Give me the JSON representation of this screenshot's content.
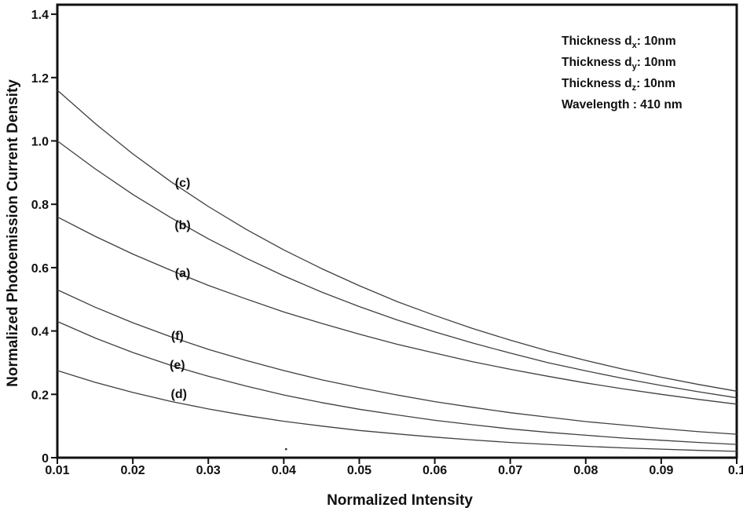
{
  "annotation": {
    "lines": [
      {
        "pre": "Thickness d",
        "sub": "x",
        "post": ": 10nm"
      },
      {
        "pre": "Thickness d",
        "sub": "y",
        "post": ": 10nm"
      },
      {
        "pre": "Thickness d",
        "sub": "z",
        "post": ": 10nm"
      },
      {
        "pre": "Wavelength : 410",
        "sub": "",
        "post": " nm"
      }
    ]
  },
  "chart_data": {
    "type": "line",
    "title": "",
    "xlabel": "Normalized Intensity",
    "ylabel": "Normalized Photoemission Current Density",
    "xlim": [
      0.01,
      0.1
    ],
    "ylim": [
      0,
      1.43
    ],
    "grid": false,
    "legend_position": "none",
    "frame_color": "#111111",
    "line_color": "#3f3f3f",
    "x": [
      0.01,
      0.015,
      0.02,
      0.025,
      0.03,
      0.035,
      0.04,
      0.045,
      0.05,
      0.055,
      0.06,
      0.065,
      0.07,
      0.075,
      0.08,
      0.085,
      0.09,
      0.095,
      0.1
    ],
    "x_ticks": [
      {
        "v": 0.01,
        "label": "0.01"
      },
      {
        "v": 0.02,
        "label": "0.02"
      },
      {
        "v": 0.03,
        "label": "0.03"
      },
      {
        "v": 0.04,
        "label": "0.04"
      },
      {
        "v": 0.05,
        "label": "0.05"
      },
      {
        "v": 0.06,
        "label": "0.06"
      },
      {
        "v": 0.07,
        "label": "0.07"
      },
      {
        "v": 0.08,
        "label": "0.08"
      },
      {
        "v": 0.09,
        "label": "0.09"
      },
      {
        "v": 0.1,
        "label": "0.1"
      }
    ],
    "y_ticks": [
      {
        "v": 0,
        "label": "0"
      },
      {
        "v": 0.2,
        "label": "0.2"
      },
      {
        "v": 0.4,
        "label": "0.4"
      },
      {
        "v": 0.6,
        "label": "0.6"
      },
      {
        "v": 0.8,
        "label": "0.8"
      },
      {
        "v": 1.0,
        "label": "1.0"
      },
      {
        "v": 1.2,
        "label": "1.2"
      },
      {
        "v": 1.4,
        "label": "1.4"
      }
    ],
    "series": [
      {
        "id": "a",
        "label": "(a)",
        "label_x": 0.0266,
        "label_y": 0.585,
        "values": [
          0.76,
          0.699,
          0.643,
          0.592,
          0.544,
          0.501,
          0.46,
          0.424,
          0.39,
          0.358,
          0.33,
          0.303,
          0.279,
          0.257,
          0.236,
          0.217,
          0.2,
          0.184,
          0.169
        ]
      },
      {
        "id": "b",
        "label": "(b)",
        "label_x": 0.0266,
        "label_y": 0.736,
        "values": [
          1.0,
          0.912,
          0.831,
          0.758,
          0.691,
          0.63,
          0.574,
          0.523,
          0.477,
          0.435,
          0.397,
          0.362,
          0.33,
          0.3,
          0.274,
          0.25,
          0.228,
          0.208,
          0.189
        ]
      },
      {
        "id": "c",
        "label": "(c)",
        "label_x": 0.0266,
        "label_y": 0.87,
        "values": [
          1.16,
          1.055,
          0.959,
          0.872,
          0.793,
          0.721,
          0.656,
          0.597,
          0.543,
          0.493,
          0.449,
          0.408,
          0.371,
          0.337,
          0.307,
          0.279,
          0.254,
          0.231,
          0.21
        ]
      },
      {
        "id": "d",
        "label": "(d)",
        "label_x": 0.0261,
        "label_y": 0.203,
        "values": [
          0.275,
          0.238,
          0.206,
          0.178,
          0.154,
          0.133,
          0.115,
          0.1,
          0.086,
          0.075,
          0.065,
          0.056,
          0.048,
          0.042,
          0.036,
          0.031,
          0.027,
          0.023,
          0.02
        ]
      },
      {
        "id": "e",
        "label": "(e)",
        "label_x": 0.0259,
        "label_y": 0.295,
        "values": [
          0.43,
          0.378,
          0.332,
          0.292,
          0.257,
          0.226,
          0.198,
          0.174,
          0.153,
          0.135,
          0.118,
          0.104,
          0.091,
          0.08,
          0.071,
          0.062,
          0.055,
          0.048,
          0.042
        ]
      },
      {
        "id": "f",
        "label": "(f)",
        "label_x": 0.0259,
        "label_y": 0.387,
        "values": [
          0.53,
          0.475,
          0.426,
          0.382,
          0.342,
          0.307,
          0.275,
          0.246,
          0.221,
          0.198,
          0.177,
          0.159,
          0.142,
          0.128,
          0.114,
          0.103,
          0.092,
          0.082,
          0.074
        ]
      }
    ],
    "speck": {
      "x": 0.0403,
      "y": 0.027
    }
  }
}
